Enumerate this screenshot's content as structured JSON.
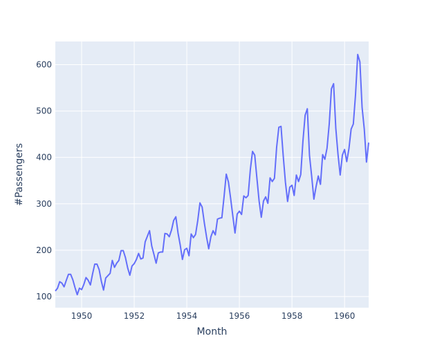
{
  "chart_data": {
    "type": "line",
    "title": "",
    "xlabel": "Month",
    "ylabel": "#Passengers",
    "xlim": [
      1949.0,
      1960.9167
    ],
    "ylim": [
      76,
      650
    ],
    "grid": true,
    "legend": "none",
    "x_ticks": [
      1950,
      1952,
      1954,
      1956,
      1958,
      1960
    ],
    "x_tick_labels": [
      "1950",
      "1952",
      "1954",
      "1956",
      "1958",
      "1960"
    ],
    "y_ticks": [
      100,
      200,
      300,
      400,
      500,
      600
    ],
    "y_tick_labels": [
      "100",
      "200",
      "300",
      "400",
      "500",
      "600"
    ],
    "x_start": 1949.0,
    "x_step": 0.083333,
    "series": [
      {
        "name": "",
        "color": "#636efa",
        "values": [
          112,
          118,
          132,
          129,
          121,
          135,
          148,
          148,
          136,
          119,
          104,
          118,
          115,
          126,
          141,
          135,
          125,
          149,
          170,
          170,
          158,
          133,
          114,
          140,
          145,
          150,
          178,
          163,
          172,
          178,
          199,
          199,
          184,
          162,
          146,
          166,
          171,
          180,
          193,
          181,
          183,
          218,
          230,
          242,
          209,
          191,
          172,
          194,
          196,
          196,
          236,
          235,
          229,
          243,
          264,
          272,
          237,
          211,
          180,
          201,
          204,
          188,
          235,
          227,
          234,
          264,
          302,
          293,
          259,
          229,
          203,
          229,
          242,
          233,
          267,
          269,
          270,
          315,
          364,
          347,
          312,
          274,
          237,
          278,
          284,
          277,
          317,
          313,
          318,
          374,
          413,
          405,
          355,
          306,
          271,
          306,
          315,
          301,
          356,
          348,
          355,
          422,
          465,
          467,
          404,
          347,
          305,
          336,
          340,
          318,
          362,
          348,
          363,
          435,
          491,
          505,
          404,
          359,
          310,
          337,
          360,
          342,
          406,
          396,
          420,
          472,
          548,
          559,
          463,
          407,
          362,
          405,
          417,
          391,
          419,
          461,
          472,
          535,
          622,
          606,
          508,
          461,
          390,
          432
        ]
      }
    ]
  },
  "colors": {
    "plot_bg": "#e5ecf6",
    "grid": "#ffffff",
    "line": "#636efa",
    "text": "#2a3f5f"
  }
}
